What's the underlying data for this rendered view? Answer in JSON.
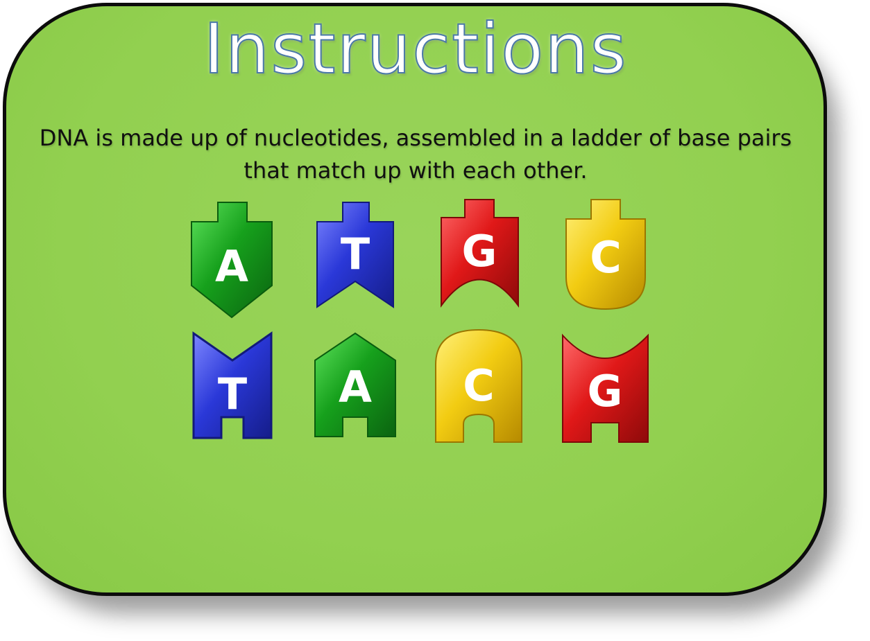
{
  "title": "Instructions",
  "description": "DNA is made up of nucleotides, assembled in a ladder of base pairs that match up with each other.",
  "nucleotides": {
    "top_row": [
      {
        "letter": "A",
        "color": "#16a01c",
        "shape": "adenine"
      },
      {
        "letter": "T",
        "color": "#2a38d8",
        "shape": "thymine"
      },
      {
        "letter": "G",
        "color": "#e01818",
        "shape": "guanine"
      },
      {
        "letter": "C",
        "color": "#f2cc12",
        "shape": "cytosine"
      }
    ],
    "bottom_row": [
      {
        "letter": "T",
        "color": "#2a38d8",
        "shape": "thymine"
      },
      {
        "letter": "A",
        "color": "#16a01c",
        "shape": "adenine"
      },
      {
        "letter": "C",
        "color": "#f2cc12",
        "shape": "cytosine"
      },
      {
        "letter": "G",
        "color": "#e01818",
        "shape": "guanine"
      }
    ]
  }
}
